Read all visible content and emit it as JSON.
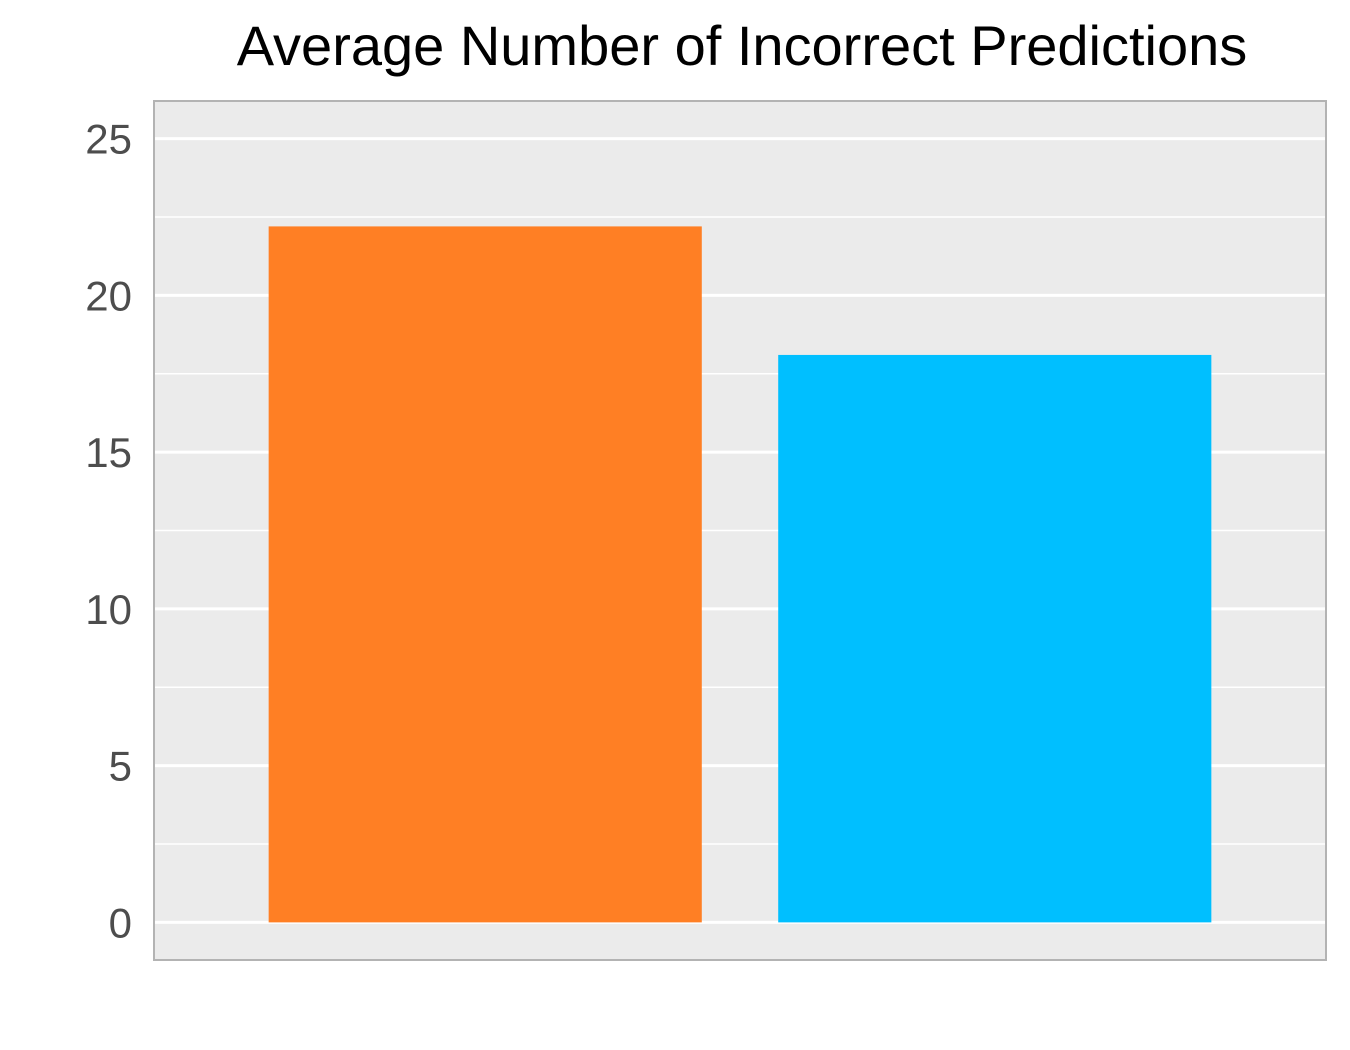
{
  "chart_data": {
    "type": "bar",
    "title": "Average Number of Incorrect Predictions",
    "xlabel": "",
    "ylabel": "",
    "categories": [
      "",
      ""
    ],
    "values": [
      22.2,
      18.1
    ],
    "bar_colors": [
      "#ff7f24",
      "#00bfff"
    ],
    "ylim": [
      -1.2,
      26.2
    ],
    "yticks": [
      0,
      5,
      10,
      15,
      20,
      25
    ],
    "minor_yticks": [
      2.5,
      7.5,
      12.5,
      17.5,
      22.5
    ],
    "grid": true,
    "legend": "none",
    "colors": {
      "panel_background": "#ebebeb",
      "grid": "#ffffff",
      "panel_border": "#b3b3b3",
      "tick_label": "#4d4d4d"
    }
  }
}
